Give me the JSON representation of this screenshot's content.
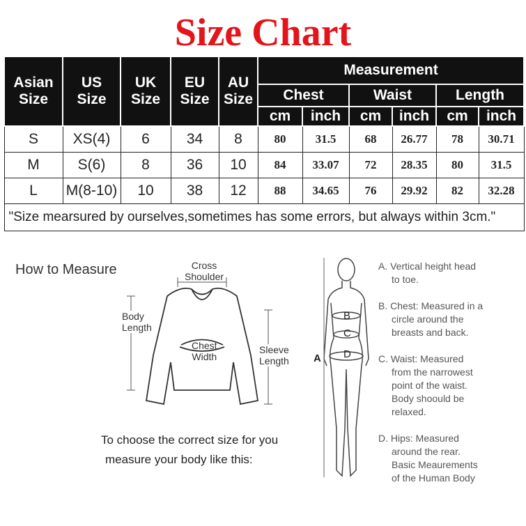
{
  "title": "Size Chart",
  "table": {
    "headers": {
      "asian": [
        "Asian",
        "Size"
      ],
      "us": [
        "US",
        "Size"
      ],
      "uk": [
        "UK",
        "Size"
      ],
      "eu": [
        "EU",
        "Size"
      ],
      "au": [
        "AU",
        "Size"
      ],
      "measurement": "Measurement",
      "chest": "Chest",
      "waist": "Waist",
      "length": "Length",
      "cm": "cm",
      "inch": "inch"
    },
    "rows": [
      [
        "S",
        "XS(4)",
        "6",
        "34",
        "8",
        "80",
        "31.5",
        "68",
        "26.77",
        "78",
        "30.71"
      ],
      [
        "M",
        "S(6)",
        "8",
        "36",
        "10",
        "84",
        "33.07",
        "72",
        "28.35",
        "80",
        "31.5"
      ],
      [
        "L",
        "M(8-10)",
        "10",
        "38",
        "12",
        "88",
        "34.65",
        "76",
        "29.92",
        "82",
        "32.28"
      ]
    ],
    "note": "\"Size mearsured by ourselves,sometimes has some errors, but always within 3cm.\""
  },
  "how_to_measure": {
    "heading": "How to Measure",
    "shirt_labels": {
      "cross_shoulder": [
        "Cross",
        "Shoulder"
      ],
      "body_length": [
        "Body",
        "Length"
      ],
      "chest_width": [
        "Chest",
        "Width"
      ],
      "sleeve_length": [
        "Sleeve",
        "Length"
      ]
    },
    "body_letters": [
      "A",
      "B",
      "C",
      "D"
    ],
    "choose": [
      "To choose the correct size for you",
      "measure your body like this:"
    ],
    "descriptions": [
      [
        "A. Vertical height head",
        "to toe."
      ],
      [
        "B. Chest: Measured in a",
        "circle around the",
        "breasts and back."
      ],
      [
        "C. Waist: Measured",
        "from the narrowest",
        "point of the waist.",
        "Body shoould be",
        "relaxed."
      ],
      [
        "D. Hips: Measured",
        "around the rear.",
        "Basic Meaurements",
        "of the Human Body"
      ]
    ]
  },
  "colors": {
    "title": "#e3141a",
    "header_bg": "#111111"
  }
}
